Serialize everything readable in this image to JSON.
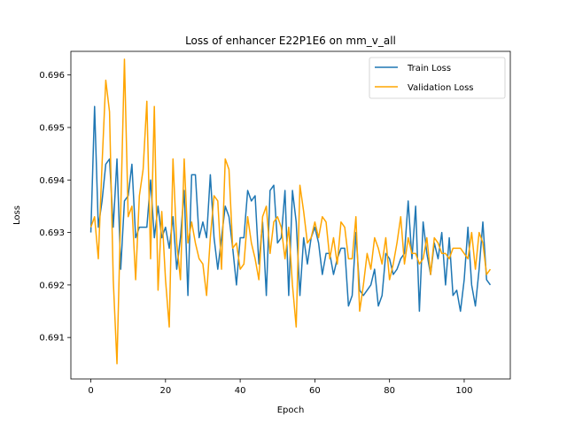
{
  "chart_data": {
    "type": "line",
    "title": "Loss of enhancer E22P1E6 on mm_v_all",
    "xlabel": "Epoch",
    "ylabel": "Loss",
    "xlim": [
      -5.35,
      112.35
    ],
    "ylim": [
      0.69021,
      0.69645
    ],
    "xticks": [
      0,
      20,
      40,
      60,
      80,
      100
    ],
    "yticks": [
      0.691,
      0.692,
      0.693,
      0.694,
      0.695,
      0.696
    ],
    "ytick_labels": [
      "0.691",
      "0.692",
      "0.693",
      "0.694",
      "0.695",
      "0.696"
    ],
    "grid": false,
    "legend_position": "top-right",
    "series": [
      {
        "name": "Train Loss",
        "color": "#1f77b4",
        "x": [
          0,
          1,
          2,
          3,
          4,
          5,
          6,
          7,
          8,
          9,
          10,
          11,
          12,
          13,
          14,
          15,
          16,
          17,
          18,
          19,
          20,
          21,
          22,
          23,
          24,
          25,
          26,
          27,
          28,
          29,
          30,
          31,
          32,
          33,
          34,
          35,
          36,
          37,
          38,
          39,
          40,
          41,
          42,
          43,
          44,
          45,
          46,
          47,
          48,
          49,
          50,
          51,
          52,
          53,
          54,
          55,
          56,
          57,
          58,
          59,
          60,
          61,
          62,
          63,
          64,
          65,
          66,
          67,
          68,
          69,
          70,
          71,
          72,
          73,
          74,
          75,
          76,
          77,
          78,
          79,
          80,
          81,
          82,
          83,
          84,
          85,
          86,
          87,
          88,
          89,
          90,
          91,
          92,
          93,
          94,
          95,
          96,
          97,
          98,
          99,
          100,
          101,
          102,
          103,
          104,
          105,
          106,
          107
        ],
        "y": [
          0.693,
          0.6954,
          0.6931,
          0.6936,
          0.6943,
          0.6944,
          0.6931,
          0.6944,
          0.6923,
          0.6936,
          0.6937,
          0.6943,
          0.6929,
          0.6931,
          0.6931,
          0.6931,
          0.694,
          0.6929,
          0.6935,
          0.6929,
          0.6931,
          0.6927,
          0.6933,
          0.6923,
          0.6929,
          0.6938,
          0.6918,
          0.6941,
          0.6941,
          0.6929,
          0.6932,
          0.6929,
          0.6941,
          0.6929,
          0.6923,
          0.6929,
          0.6935,
          0.6933,
          0.6927,
          0.692,
          0.6929,
          0.6929,
          0.6938,
          0.6936,
          0.6937,
          0.6924,
          0.6932,
          0.6918,
          0.6938,
          0.6939,
          0.6928,
          0.6929,
          0.6938,
          0.6918,
          0.6938,
          0.6932,
          0.6918,
          0.6929,
          0.6924,
          0.6929,
          0.6931,
          0.6928,
          0.6922,
          0.6926,
          0.6926,
          0.6922,
          0.6925,
          0.6927,
          0.6927,
          0.6916,
          0.6918,
          0.693,
          0.6919,
          0.6918,
          0.6919,
          0.692,
          0.6923,
          0.6916,
          0.6918,
          0.6926,
          0.6925,
          0.6922,
          0.6923,
          0.6925,
          0.6926,
          0.6936,
          0.6925,
          0.6935,
          0.6915,
          0.6932,
          0.6926,
          0.6922,
          0.6928,
          0.6925,
          0.693,
          0.692,
          0.6929,
          0.6918,
          0.6919,
          0.6915,
          0.6921,
          0.6931,
          0.692,
          0.6916,
          0.6923,
          0.6932,
          0.6921,
          0.692
        ]
      },
      {
        "name": "Validation Loss",
        "color": "#ffa500",
        "x": [
          0,
          1,
          2,
          3,
          4,
          5,
          6,
          7,
          8,
          9,
          10,
          11,
          12,
          13,
          14,
          15,
          16,
          17,
          18,
          19,
          20,
          21,
          22,
          23,
          24,
          25,
          26,
          27,
          28,
          29,
          30,
          31,
          32,
          33,
          34,
          35,
          36,
          37,
          38,
          39,
          40,
          41,
          42,
          43,
          44,
          45,
          46,
          47,
          48,
          49,
          50,
          51,
          52,
          53,
          54,
          55,
          56,
          57,
          58,
          59,
          60,
          61,
          62,
          63,
          64,
          65,
          66,
          67,
          68,
          69,
          70,
          71,
          72,
          73,
          74,
          75,
          76,
          77,
          78,
          79,
          80,
          81,
          82,
          83,
          84,
          85,
          86,
          87,
          88,
          89,
          90,
          91,
          92,
          93,
          94,
          95,
          96,
          97,
          98,
          99,
          100,
          101,
          102,
          103,
          104,
          105,
          106,
          107
        ],
        "y": [
          0.6931,
          0.6933,
          0.6925,
          0.6943,
          0.6959,
          0.6953,
          0.6921,
          0.6905,
          0.6934,
          0.6963,
          0.6933,
          0.6935,
          0.6921,
          0.6937,
          0.6942,
          0.6955,
          0.6925,
          0.6954,
          0.6919,
          0.6934,
          0.6921,
          0.6912,
          0.6944,
          0.6928,
          0.6921,
          0.6944,
          0.6928,
          0.6932,
          0.6928,
          0.6925,
          0.6924,
          0.6918,
          0.6929,
          0.6937,
          0.6936,
          0.6923,
          0.6944,
          0.6942,
          0.6927,
          0.6928,
          0.6923,
          0.6924,
          0.6933,
          0.6928,
          0.6925,
          0.6921,
          0.6933,
          0.6935,
          0.6926,
          0.6932,
          0.6933,
          0.6931,
          0.6925,
          0.6931,
          0.692,
          0.6912,
          0.6939,
          0.6934,
          0.6928,
          0.6929,
          0.6932,
          0.6929,
          0.6933,
          0.6932,
          0.6925,
          0.6929,
          0.6924,
          0.6932,
          0.6931,
          0.6925,
          0.6925,
          0.6933,
          0.6915,
          0.692,
          0.6926,
          0.6923,
          0.6929,
          0.6927,
          0.6924,
          0.6929,
          0.6921,
          0.6924,
          0.6928,
          0.6933,
          0.6924,
          0.6929,
          0.6926,
          0.6926,
          0.6924,
          0.6925,
          0.6929,
          0.6922,
          0.6929,
          0.6928,
          0.6926,
          0.6926,
          0.6925,
          0.6927,
          0.6927,
          0.6927,
          0.6926,
          0.6925,
          0.693,
          0.6923,
          0.693,
          0.6928,
          0.6922,
          0.6923
        ]
      }
    ]
  }
}
